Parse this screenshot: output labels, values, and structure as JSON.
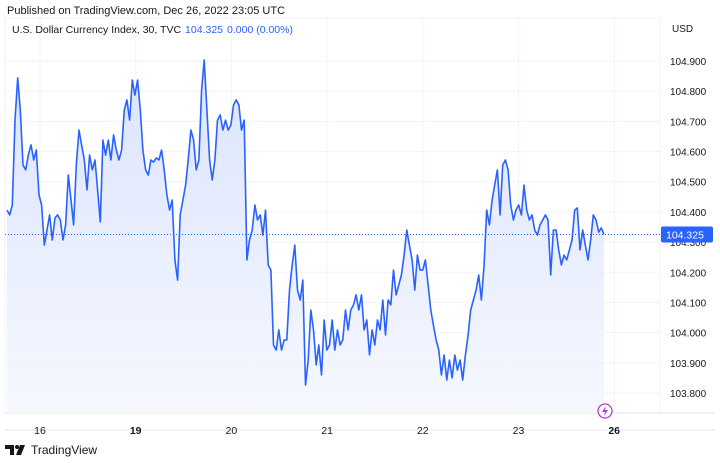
{
  "published": "Published on TradingView.com, Dec 26, 2022 23:05 UTC",
  "legend": {
    "symbol": "U.S. Dollar Currency Index, 30, TVC",
    "last": "104.325",
    "change": "0.000 (0.00%)"
  },
  "footer": {
    "brand": "TradingView"
  },
  "colors": {
    "line": "#2962ff",
    "fill_top": "#dbe4fd",
    "fill_bottom": "#f6f8fe",
    "grid": "#f0f3fa",
    "text": "#131722",
    "event": "#b43ed4"
  },
  "chart_data": {
    "type": "area",
    "currency": "USD",
    "ylim": [
      103.75,
      105.05
    ],
    "y_ticks": [
      "104.900",
      "104.800",
      "104.700",
      "104.600",
      "104.500",
      "104.400",
      "104.300",
      "104.200",
      "104.100",
      "104.000",
      "103.900",
      "103.800"
    ],
    "y_tick_values": [
      104.9,
      104.8,
      104.7,
      104.6,
      104.5,
      104.4,
      104.3,
      104.2,
      104.1,
      104.0,
      103.9,
      103.8
    ],
    "x_ticks": [
      {
        "label": "16",
        "bold": false
      },
      {
        "label": "19",
        "bold": true
      },
      {
        "label": "20",
        "bold": false
      },
      {
        "label": "21",
        "bold": false
      },
      {
        "label": "22",
        "bold": false
      },
      {
        "label": "23",
        "bold": false
      },
      {
        "label": "26",
        "bold": true
      }
    ],
    "current_price": 104.325,
    "current_label": "104.325",
    "values": [
      104.406,
      104.39,
      104.423,
      104.704,
      104.844,
      104.738,
      104.555,
      104.539,
      104.588,
      104.622,
      104.572,
      104.605,
      104.456,
      104.423,
      104.29,
      104.34,
      104.39,
      104.307,
      104.38,
      104.39,
      104.373,
      104.307,
      104.357,
      104.522,
      104.439,
      104.357,
      104.555,
      104.671,
      104.622,
      104.572,
      104.473,
      104.588,
      104.539,
      104.572,
      104.473,
      104.367,
      104.638,
      104.588,
      104.638,
      104.572,
      104.655,
      104.605,
      104.572,
      104.605,
      104.738,
      104.771,
      104.704,
      104.837,
      104.787,
      104.837,
      104.738,
      104.605,
      104.539,
      104.522,
      104.572,
      104.565,
      104.579,
      104.572,
      104.605,
      104.539,
      104.456,
      104.406,
      104.439,
      104.241,
      104.174,
      104.39,
      104.439,
      104.489,
      104.572,
      104.671,
      104.638,
      104.539,
      104.572,
      104.804,
      104.903,
      104.738,
      104.572,
      104.506,
      104.572,
      104.704,
      104.721,
      104.671,
      104.704,
      104.671,
      104.688,
      104.754,
      104.771,
      104.754,
      104.671,
      104.704,
      104.241,
      104.307,
      104.34,
      104.423,
      104.373,
      104.39,
      104.323,
      104.406,
      104.224,
      104.207,
      103.959,
      103.942,
      104.009,
      103.942,
      103.976,
      103.976,
      104.141,
      104.224,
      104.29,
      104.141,
      104.108,
      104.174,
      103.826,
      103.909,
      104.075,
      104.009,
      103.893,
      103.959,
      103.86,
      104.042,
      103.942,
      103.959,
      104.042,
      103.942,
      104.009,
      103.959,
      103.976,
      104.075,
      104.009,
      104.075,
      104.092,
      104.125,
      104.075,
      104.125,
      104.009,
      104.042,
      103.926,
      104.009,
      103.959,
      104.042,
      104.009,
      104.108,
      103.992,
      104.108,
      104.092,
      104.207,
      104.125,
      104.158,
      104.191,
      104.257,
      104.34,
      104.29,
      104.241,
      104.141,
      104.257,
      104.207,
      104.207,
      104.241,
      104.158,
      104.075,
      104.025,
      103.976,
      103.942,
      103.86,
      103.926,
      103.843,
      103.909,
      103.85,
      103.926,
      103.876,
      103.909,
      103.843,
      103.926,
      103.992,
      104.075,
      104.108,
      104.141,
      104.191,
      104.108,
      104.224,
      104.406,
      104.357,
      104.439,
      104.489,
      104.539,
      104.39,
      104.555,
      104.572,
      104.539,
      104.423,
      104.373,
      104.406,
      104.423,
      104.39,
      104.489,
      104.406,
      104.373,
      104.39,
      104.34,
      104.323,
      104.357,
      104.373,
      104.39,
      104.373,
      104.191,
      104.34,
      104.34,
      104.274,
      104.224,
      104.257,
      104.241,
      104.274,
      104.307,
      104.406,
      104.413,
      104.274,
      104.34,
      104.29,
      104.241,
      104.307,
      104.39,
      104.373,
      104.333,
      104.347,
      104.325
    ]
  }
}
